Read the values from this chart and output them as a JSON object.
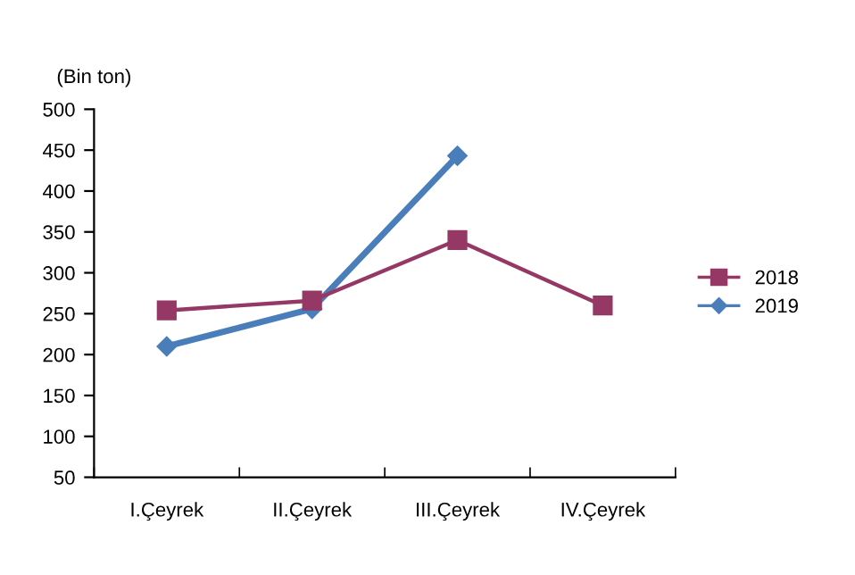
{
  "chart_data": {
    "type": "line",
    "ylabel": "(Bin ton)",
    "categories": [
      "I.Çeyrek",
      "II.Çeyrek",
      "III.Çeyrek",
      "IV.Çeyrek"
    ],
    "series": [
      {
        "name": "2018",
        "color": "#953865",
        "values": [
          254,
          266,
          340,
          260
        ],
        "marker": "square"
      },
      {
        "name": "2019",
        "color": "#4a7ebb",
        "values": [
          210,
          256,
          443,
          null
        ],
        "marker": "diamond"
      }
    ],
    "ylim": [
      50,
      500
    ],
    "yticks": [
      50,
      100,
      150,
      200,
      250,
      300,
      350,
      400,
      450,
      500
    ],
    "grid": false,
    "legend": "right"
  }
}
